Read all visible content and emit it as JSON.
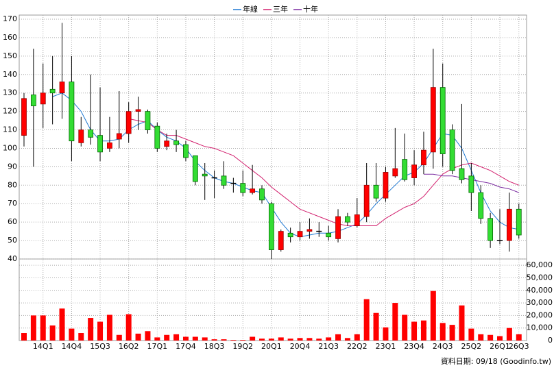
{
  "chart_data": {
    "type": "candlestick",
    "categories": [
      null,
      null,
      "14Q1",
      null,
      null,
      "14Q4",
      null,
      null,
      "15Q3",
      null,
      null,
      "16Q2",
      null,
      null,
      "17Q1",
      null,
      null,
      "17Q4",
      null,
      null,
      "18Q3",
      null,
      null,
      "19Q2",
      null,
      null,
      "20Q1",
      null,
      null,
      "20Q4",
      null,
      null,
      "21Q3",
      null,
      null,
      "22Q2",
      null,
      null,
      "23Q1",
      null,
      null,
      "23Q4",
      null,
      null,
      "24Q3",
      null,
      null,
      "25Q2",
      null,
      null,
      "26Q1",
      null,
      "26Q3"
    ],
    "open": [
      107,
      129,
      124,
      132,
      130,
      136,
      103,
      110,
      107,
      100,
      105,
      108,
      120,
      120,
      112,
      101,
      104,
      102,
      96,
      86,
      84,
      85,
      81,
      81,
      76,
      78,
      70,
      45,
      54,
      52,
      55,
      55,
      54,
      51,
      63,
      58,
      63,
      80,
      73,
      85,
      94,
      84,
      91,
      98,
      133,
      110,
      89,
      85,
      76,
      62,
      50,
      50,
      67
    ],
    "high": [
      130,
      154,
      146,
      150,
      168,
      150,
      117,
      140,
      133,
      117,
      131,
      125,
      128,
      121,
      114,
      108,
      110,
      104,
      96,
      92,
      88,
      93,
      84,
      88,
      91,
      80,
      71,
      56,
      57,
      60,
      62,
      60,
      58,
      67,
      65,
      73,
      92,
      92,
      90,
      111,
      108,
      99,
      109,
      154,
      146,
      113,
      124,
      92,
      80,
      65,
      67,
      76,
      70
    ],
    "low": [
      101,
      90,
      111,
      113,
      116,
      93,
      101,
      102,
      93,
      98,
      100,
      103,
      110,
      108,
      98,
      99,
      98,
      93,
      80,
      72,
      73,
      78,
      76,
      74,
      75,
      70,
      40,
      44,
      49,
      50,
      51,
      52,
      50,
      49,
      58,
      57,
      60,
      71,
      71,
      84,
      82,
      80,
      86,
      89,
      90,
      86,
      81,
      66,
      59,
      46,
      48,
      44,
      51
    ],
    "close": [
      127,
      123,
      130,
      130,
      136,
      104,
      110,
      106,
      98,
      103,
      108,
      120,
      121,
      110,
      100,
      104,
      102,
      95,
      82,
      85,
      84,
      80,
      81,
      76,
      78,
      72,
      45,
      55,
      52,
      55,
      56,
      55,
      52,
      63,
      60,
      64,
      80,
      73,
      87,
      89,
      83,
      91,
      99,
      133,
      97,
      88,
      83,
      76,
      62,
      50,
      50,
      67,
      53
    ],
    "up_color": "#ff0000",
    "down_color": "#33dd33",
    "volume": [
      6000,
      20000,
      20000,
      12000,
      25500,
      9500,
      6000,
      18000,
      15000,
      20500,
      4500,
      21000,
      5500,
      7500,
      2500,
      4500,
      5000,
      3000,
      3000,
      2500,
      1000,
      1000,
      500,
      500,
      3000,
      1500,
      1500,
      2500,
      1500,
      2000,
      2000,
      1500,
      2500,
      5000,
      2000,
      5000,
      33000,
      22000,
      10500,
      30000,
      20500,
      15000,
      16000,
      39500,
      14000,
      12500,
      28000,
      9500,
      5000,
      4500,
      3500,
      10000,
      5000
    ],
    "volume_color": "#ff0000",
    "series": [
      {
        "name": "年線",
        "color": "#1e78d2",
        "values": [
          null,
          null,
          null,
          128,
          130,
          126,
          120,
          110,
          104,
          104,
          105,
          110,
          113,
          115,
          110,
          106,
          104,
          100,
          93,
          88,
          84,
          82,
          81,
          79,
          77,
          76,
          68,
          60,
          54,
          52,
          53,
          54,
          54,
          55,
          57,
          59,
          64,
          70,
          75,
          80,
          85,
          87,
          92,
          100,
          108,
          107,
          100,
          88,
          76,
          66,
          60,
          57,
          56
        ]
      },
      {
        "name": "三年",
        "color": "#d2206e",
        "values": [
          null,
          null,
          null,
          null,
          null,
          null,
          null,
          null,
          null,
          null,
          null,
          116,
          115,
          114,
          110,
          107,
          107,
          105,
          103,
          101,
          100,
          98,
          96,
          92,
          88,
          84,
          79,
          75,
          71,
          67,
          65,
          63,
          61,
          59,
          58,
          58,
          58,
          58,
          62,
          65,
          68,
          70,
          74,
          80,
          86,
          89,
          91,
          92,
          90,
          88,
          85,
          82,
          80
        ]
      },
      {
        "name": "十年",
        "color": "#7a2aa0",
        "values": [
          null,
          null,
          null,
          null,
          null,
          null,
          null,
          null,
          null,
          null,
          null,
          null,
          null,
          null,
          null,
          null,
          null,
          null,
          null,
          null,
          null,
          null,
          null,
          null,
          null,
          null,
          null,
          null,
          null,
          null,
          null,
          null,
          null,
          null,
          null,
          null,
          null,
          null,
          null,
          null,
          null,
          null,
          86,
          86,
          85,
          85,
          84,
          83,
          82,
          81,
          79,
          78,
          76
        ]
      }
    ],
    "ylim": [
      40,
      170
    ],
    "yticks": [
      40,
      50,
      60,
      70,
      80,
      90,
      100,
      110,
      120,
      130,
      140,
      150,
      160,
      170
    ],
    "y2lim": [
      0,
      65000
    ],
    "y2ticks": [
      0,
      {
        "value": 10000,
        "label": "10,000"
      },
      {
        "value": 20000,
        "label": "20,000"
      },
      {
        "value": 30000,
        "label": "30,000"
      },
      {
        "value": 40000,
        "label": "40,000"
      },
      {
        "value": 50000,
        "label": "50,000"
      },
      {
        "value": 60000,
        "label": "60,000"
      }
    ],
    "grid": true,
    "source": "資料日期: 09/18  (Goodinfo.tw)"
  }
}
